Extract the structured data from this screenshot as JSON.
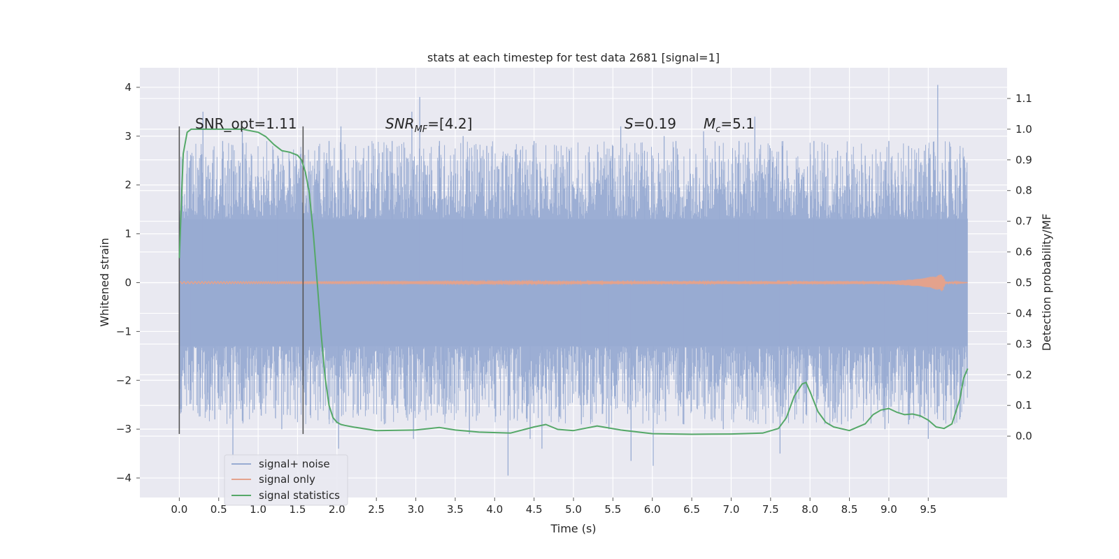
{
  "colors": {
    "plot_bg": "#e9e9f1",
    "grid": "#ffffff",
    "noise": "#98abd2",
    "signal": "#e4a28c",
    "stats": "#55a868",
    "vline": "#555555",
    "text": "#262626"
  },
  "chart_data": {
    "type": "line",
    "title": "stats at each timestep for test data 2681 [signal=1]",
    "xlabel": "Time (s)",
    "ylabel_left": "Whitened strain",
    "ylabel_right": "Detection probability/MF",
    "xlim": [
      -0.5,
      10.5
    ],
    "ylim_left": [
      -4.4,
      4.4
    ],
    "ylim_right": [
      -0.2,
      1.2
    ],
    "xticks": [
      0.0,
      0.5,
      1.0,
      1.5,
      2.0,
      2.5,
      3.0,
      3.5,
      4.0,
      4.5,
      5.0,
      5.5,
      6.0,
      6.5,
      7.0,
      7.5,
      8.0,
      8.5,
      9.0,
      9.5
    ],
    "xtick_labels": [
      "0.0",
      "0.5",
      "1.0",
      "1.5",
      "2.0",
      "2.5",
      "3.0",
      "3.5",
      "4.0",
      "4.5",
      "5.0",
      "5.5",
      "6.0",
      "6.5",
      "7.0",
      "7.5",
      "8.0",
      "8.5",
      "9.0",
      "9.5"
    ],
    "yticks_left": [
      -4,
      -3,
      -2,
      -1,
      0,
      1,
      2,
      3,
      4
    ],
    "ytick_labels_left": [
      "−4",
      "−3",
      "−2",
      "−1",
      "0",
      "1",
      "2",
      "3",
      "4"
    ],
    "yticks_right": [
      0.0,
      0.1,
      0.2,
      0.3,
      0.4,
      0.5,
      0.6,
      0.7,
      0.8,
      0.9,
      1.0,
      1.1
    ],
    "ytick_labels_right": [
      "0.0",
      "0.1",
      "0.2",
      "0.3",
      "0.4",
      "0.5",
      "0.6",
      "0.7",
      "0.8",
      "0.9",
      "1.0",
      "1.1"
    ],
    "grid": true,
    "legend_position": "lower-left",
    "series": [
      {
        "name": "signal+ noise",
        "axis": "left",
        "style": "dense-noise",
        "x_range": [
          0.0,
          10.0
        ],
        "band": [
          -1.3,
          1.3
        ],
        "spikes_up": [
          [
            0.1,
            2.7
          ],
          [
            0.3,
            3.5
          ],
          [
            0.55,
            2.9
          ],
          [
            0.8,
            3.1
          ],
          [
            1.25,
            2.6
          ],
          [
            1.55,
            2.4
          ],
          [
            1.75,
            2.5
          ],
          [
            1.9,
            2.9
          ],
          [
            2.05,
            3.2
          ],
          [
            2.4,
            2.8
          ],
          [
            2.7,
            2.9
          ],
          [
            2.95,
            3.5
          ],
          [
            3.05,
            3.8
          ],
          [
            3.3,
            2.9
          ],
          [
            3.6,
            3.0
          ],
          [
            3.9,
            2.8
          ],
          [
            4.15,
            2.6
          ],
          [
            4.5,
            2.9
          ],
          [
            4.95,
            2.7
          ],
          [
            5.5,
            2.8
          ],
          [
            5.6,
            3.2
          ],
          [
            5.9,
            2.7
          ],
          [
            6.15,
            3.0
          ],
          [
            6.3,
            2.9
          ],
          [
            6.65,
            3.1
          ],
          [
            6.85,
            2.8
          ],
          [
            7.1,
            2.9
          ],
          [
            7.3,
            3.4
          ],
          [
            7.65,
            2.8
          ],
          [
            8.05,
            2.9
          ],
          [
            8.35,
            2.7
          ],
          [
            8.7,
            2.6
          ],
          [
            9.0,
            2.9
          ],
          [
            9.25,
            2.8
          ],
          [
            9.45,
            2.7
          ],
          [
            9.62,
            4.05
          ],
          [
            9.85,
            2.2
          ]
        ],
        "spikes_down": [
          [
            0.15,
            -2.4
          ],
          [
            0.45,
            -2.8
          ],
          [
            0.68,
            -3.6
          ],
          [
            0.95,
            -2.6
          ],
          [
            1.3,
            -3.0
          ],
          [
            1.6,
            -2.5
          ],
          [
            1.9,
            -2.8
          ],
          [
            2.02,
            -3.4
          ],
          [
            2.3,
            -2.6
          ],
          [
            2.6,
            -2.9
          ],
          [
            2.97,
            -3.2
          ],
          [
            3.35,
            -2.7
          ],
          [
            3.68,
            -3.1
          ],
          [
            4.17,
            -3.95
          ],
          [
            4.45,
            -3.2
          ],
          [
            4.6,
            -3.4
          ],
          [
            5.1,
            -2.9
          ],
          [
            5.45,
            -3.0
          ],
          [
            5.73,
            -3.65
          ],
          [
            6.01,
            -3.75
          ],
          [
            6.4,
            -2.9
          ],
          [
            6.9,
            -3.0
          ],
          [
            7.2,
            -2.8
          ],
          [
            7.62,
            -3.5
          ],
          [
            7.95,
            -2.7
          ],
          [
            8.4,
            -2.9
          ],
          [
            8.95,
            -3.0
          ],
          [
            9.25,
            -2.9
          ],
          [
            9.5,
            -3.2
          ],
          [
            9.9,
            -2.8
          ]
        ]
      },
      {
        "name": "signal only",
        "axis": "left",
        "style": "chirp",
        "x": [
          0.0,
          9.0,
          9.4,
          9.6,
          9.68,
          9.72,
          10.0
        ],
        "envelope": [
          0.02,
          0.03,
          0.08,
          0.14,
          0.18,
          0.02,
          0.0
        ]
      },
      {
        "name": "signal statistics",
        "axis": "right",
        "style": "line",
        "x": [
          0.0,
          0.05,
          0.1,
          0.15,
          0.25,
          0.5,
          0.8,
          1.0,
          1.1,
          1.2,
          1.3,
          1.4,
          1.5,
          1.55,
          1.6,
          1.65,
          1.7,
          1.75,
          1.8,
          1.85,
          1.9,
          1.95,
          2.0,
          2.05,
          2.1,
          2.2,
          2.5,
          3.0,
          3.3,
          3.5,
          3.8,
          4.2,
          4.5,
          4.65,
          4.8,
          5.0,
          5.3,
          5.6,
          6.0,
          6.5,
          7.0,
          7.4,
          7.6,
          7.7,
          7.8,
          7.9,
          7.95,
          8.0,
          8.1,
          8.2,
          8.3,
          8.5,
          8.7,
          8.8,
          8.9,
          9.0,
          9.1,
          9.2,
          9.3,
          9.4,
          9.5,
          9.6,
          9.7,
          9.8,
          9.9,
          9.95,
          10.0
        ],
        "y": [
          0.58,
          0.92,
          0.99,
          1.0,
          1.0,
          1.0,
          1.0,
          0.99,
          0.975,
          0.95,
          0.93,
          0.925,
          0.915,
          0.9,
          0.86,
          0.79,
          0.66,
          0.5,
          0.33,
          0.19,
          0.1,
          0.06,
          0.045,
          0.038,
          0.035,
          0.03,
          0.018,
          0.02,
          0.028,
          0.02,
          0.013,
          0.01,
          0.03,
          0.038,
          0.022,
          0.018,
          0.033,
          0.02,
          0.008,
          0.006,
          0.007,
          0.01,
          0.025,
          0.06,
          0.13,
          0.17,
          0.175,
          0.145,
          0.08,
          0.045,
          0.03,
          0.018,
          0.04,
          0.07,
          0.085,
          0.09,
          0.078,
          0.07,
          0.072,
          0.066,
          0.052,
          0.03,
          0.025,
          0.04,
          0.12,
          0.19,
          0.22
        ]
      }
    ],
    "vertical_lines": [
      {
        "x": 0.0,
        "y0": -3.1,
        "y1": 3.2
      },
      {
        "x": 1.57,
        "y0": -3.1,
        "y1": 3.2
      }
    ]
  },
  "annotations": {
    "snr_opt": "SNR_opt=1.11",
    "snr_mf_main": "SNR",
    "snr_mf_sub": "MF",
    "snr_mf_rest": "=[4.2]",
    "s_var": "S",
    "s_rest": "=0.19",
    "mc_main": "M",
    "mc_sub": "c",
    "mc_rest": "=5.1"
  },
  "legend": {
    "noise_label": "signal+ noise",
    "signal_label": "signal only",
    "stats_label": "signal statistics"
  }
}
